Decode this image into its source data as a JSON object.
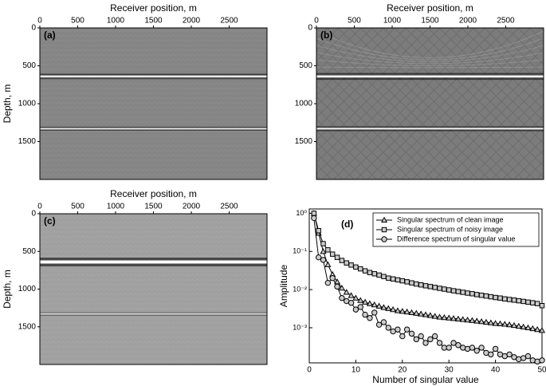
{
  "chart_data": [
    {
      "type": "image",
      "panel_label": "(a)",
      "xlabel": "Receiver position, m",
      "ylabel": "Depth, m",
      "xlim": [
        0,
        3000
      ],
      "xticks": [
        0,
        500,
        1000,
        1500,
        2000,
        2500
      ],
      "ylim": [
        0,
        2000
      ],
      "yticks": [
        0,
        500,
        1000,
        1500
      ],
      "background": "#858585",
      "reflectors": [
        640,
        1330
      ]
    },
    {
      "type": "image",
      "panel_label": "(b)",
      "xlabel": "Receiver position, m",
      "xlim": [
        0,
        3000
      ],
      "xticks": [
        0,
        500,
        1000,
        1500,
        2000,
        2500
      ],
      "ylim": [
        0,
        2000
      ],
      "yticks": [
        0,
        500,
        1000,
        1500
      ],
      "background": "#7c7c7c",
      "reflectors": [
        640,
        1330
      ]
    },
    {
      "type": "image",
      "panel_label": "(c)",
      "xlabel": "Receiver position, m",
      "ylabel": "Depth, m",
      "xlim": [
        0,
        3000
      ],
      "xticks": [
        0,
        500,
        1000,
        1500,
        2000,
        2500
      ],
      "ylim": [
        0,
        2000
      ],
      "yticks": [
        0,
        500,
        1000,
        1500
      ],
      "background": "#a0a0a0",
      "reflectors": [
        640,
        1330
      ]
    },
    {
      "type": "line",
      "panel_label": "(d)",
      "xlabel": "Number of singular value",
      "ylabel": "Amplitude",
      "log_y": true,
      "legend": "top-right",
      "xlim": [
        0,
        50
      ],
      "xticks": [
        0,
        10,
        20,
        30,
        40,
        50
      ],
      "ylim": [
        0.00012,
        1.3
      ],
      "yticks": [
        {
          "value": 1,
          "label": "10⁰"
        },
        {
          "value": 0.1,
          "label": "10⁻¹"
        },
        {
          "value": 0.01,
          "label": "10⁻²"
        },
        {
          "value": 0.001,
          "label": "10⁻³"
        }
      ],
      "x": [
        1,
        2,
        3,
        4,
        5,
        6,
        7,
        8,
        9,
        10,
        11,
        12,
        13,
        14,
        15,
        16,
        17,
        18,
        19,
        20,
        21,
        22,
        23,
        24,
        25,
        26,
        27,
        28,
        29,
        30,
        31,
        32,
        33,
        34,
        35,
        36,
        37,
        38,
        39,
        40,
        41,
        42,
        43,
        44,
        45,
        46,
        47,
        48,
        49,
        50
      ],
      "series": [
        {
          "name": "Singular spectrum of clean image",
          "color": "#000000",
          "marker": "triangle",
          "values": [
            1,
            0.3,
            0.1,
            0.045,
            0.025,
            0.016,
            0.011,
            0.0085,
            0.007,
            0.006,
            0.0052,
            0.0047,
            0.0043,
            0.004,
            0.0037,
            0.0034,
            0.0032,
            0.003,
            0.0028,
            0.0027,
            0.0026,
            0.0025,
            0.0024,
            0.0023,
            0.0022,
            0.0021,
            0.002,
            0.0019,
            0.00185,
            0.0018,
            0.00175,
            0.0017,
            0.00165,
            0.0016,
            0.00155,
            0.0015,
            0.00145,
            0.0014,
            0.00135,
            0.0013,
            0.00127,
            0.00124,
            0.0012,
            0.00115,
            0.0011,
            0.00105,
            0.001,
            0.00095,
            0.0009,
            0.00085
          ]
        },
        {
          "name": "Singular spectrum of noisy image",
          "color": "#000000",
          "marker": "square",
          "values": [
            1,
            0.35,
            0.16,
            0.11,
            0.085,
            0.07,
            0.058,
            0.05,
            0.044,
            0.039,
            0.035,
            0.031,
            0.028,
            0.026,
            0.024,
            0.022,
            0.02,
            0.019,
            0.018,
            0.017,
            0.016,
            0.015,
            0.014,
            0.0133,
            0.0126,
            0.012,
            0.0114,
            0.0108,
            0.0103,
            0.0098,
            0.0093,
            0.0089,
            0.0085,
            0.0081,
            0.0078,
            0.0074,
            0.0071,
            0.0068,
            0.0065,
            0.0062,
            0.006,
            0.0057,
            0.0055,
            0.0053,
            0.0051,
            0.0049,
            0.0047,
            0.0045,
            0.0043,
            0.0038
          ]
        },
        {
          "name": "Difference spectrum of singular value",
          "color": "#000000",
          "marker": "circle",
          "values": [
            0.75,
            0.07,
            0.06,
            0.015,
            0.02,
            0.012,
            0.006,
            0.005,
            0.0045,
            0.003,
            0.0035,
            0.0022,
            0.0018,
            0.0025,
            0.0012,
            0.0014,
            0.001,
            0.0008,
            0.0009,
            0.0006,
            0.0009,
            0.0007,
            0.0005,
            0.0006,
            0.0004,
            0.0005,
            0.0006,
            0.0004,
            0.0003,
            0.0003,
            0.0004,
            0.00035,
            0.0003,
            0.00028,
            0.0003,
            0.00025,
            0.0003,
            0.00022,
            0.0002,
            0.00028,
            0.0002,
            0.00018,
            0.0002,
            0.00017,
            0.00015,
            0.00016,
            0.00018,
            0.00014,
            0.00013,
            0.00014
          ]
        }
      ]
    }
  ]
}
